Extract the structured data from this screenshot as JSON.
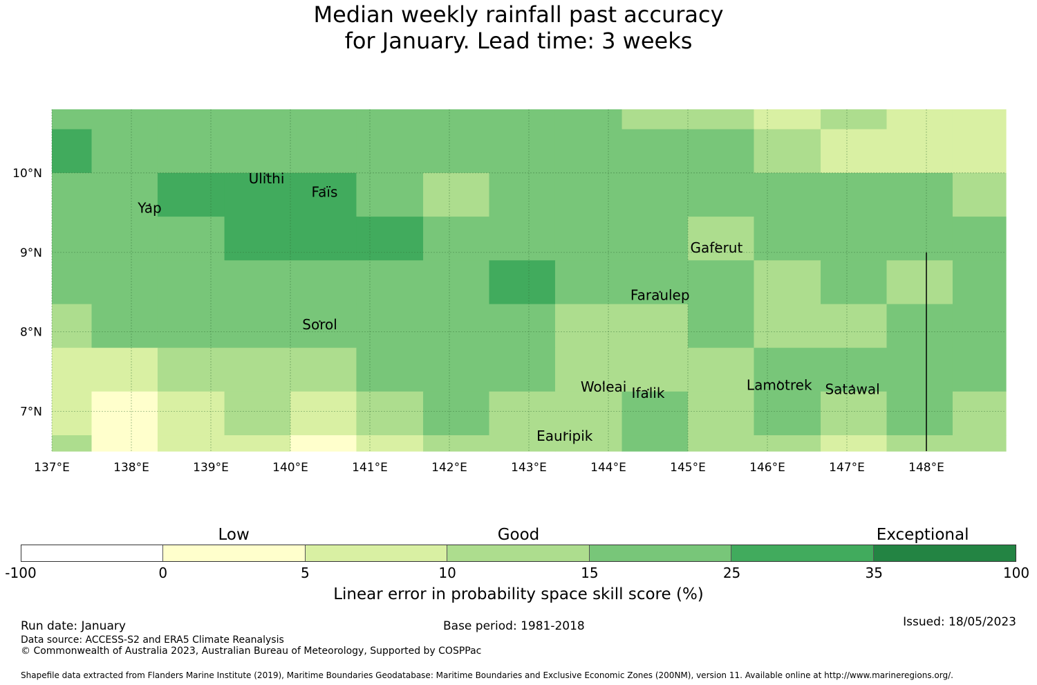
{
  "title": {
    "line1": "Median weekly rainfall past accuracy",
    "line2": "for January. Lead time: 3 weeks"
  },
  "chart_data": {
    "type": "heatmap",
    "title": "Median weekly rainfall past accuracy for January. Lead time: 3 weeks",
    "xlim": [
      137.0,
      149.0
    ],
    "ylim": [
      6.5,
      10.8
    ],
    "x_ticks": [
      {
        "value": 137,
        "label": "137°E"
      },
      {
        "value": 138,
        "label": "138°E"
      },
      {
        "value": 139,
        "label": "139°E"
      },
      {
        "value": 140,
        "label": "140°E"
      },
      {
        "value": 141,
        "label": "141°E"
      },
      {
        "value": 142,
        "label": "142°E"
      },
      {
        "value": 143,
        "label": "143°E"
      },
      {
        "value": 144,
        "label": "144°E"
      },
      {
        "value": 145,
        "label": "145°E"
      },
      {
        "value": 146,
        "label": "146°E"
      },
      {
        "value": 147,
        "label": "147°E"
      },
      {
        "value": 148,
        "label": "148°E"
      }
    ],
    "y_ticks": [
      {
        "value": 7,
        "label": "7°N"
      },
      {
        "value": 8,
        "label": "8°N"
      },
      {
        "value": 9,
        "label": "9°N"
      },
      {
        "value": 10,
        "label": "10°N"
      }
    ],
    "grid": true,
    "col_edges": [
      137.0,
      137.5,
      138.33,
      139.17,
      140.0,
      140.83,
      141.67,
      142.5,
      143.33,
      144.17,
      145.0,
      145.83,
      146.67,
      147.5,
      148.33,
      149.0
    ],
    "row_edges": [
      10.8,
      10.55,
      10.0,
      9.45,
      8.9,
      8.35,
      7.8,
      7.25,
      6.7,
      6.5
    ],
    "cell_class": [
      [
        4,
        4,
        4,
        4,
        4,
        4,
        4,
        4,
        4,
        3,
        3,
        2,
        3,
        2,
        2
      ],
      [
        5,
        4,
        4,
        4,
        4,
        4,
        4,
        4,
        4,
        4,
        4,
        3,
        2,
        2,
        2
      ],
      [
        4,
        4,
        5,
        5,
        5,
        4,
        3,
        4,
        4,
        4,
        4,
        4,
        4,
        4,
        3
      ],
      [
        4,
        4,
        4,
        5,
        5,
        5,
        4,
        4,
        4,
        4,
        3,
        4,
        4,
        4,
        4
      ],
      [
        4,
        4,
        4,
        4,
        4,
        4,
        4,
        5,
        4,
        4,
        4,
        3,
        4,
        3,
        4
      ],
      [
        3,
        4,
        4,
        4,
        4,
        4,
        4,
        4,
        3,
        3,
        4,
        3,
        3,
        4,
        4
      ],
      [
        2,
        2,
        3,
        3,
        3,
        4,
        4,
        4,
        3,
        3,
        3,
        4,
        4,
        4,
        4
      ],
      [
        2,
        1,
        2,
        3,
        2,
        3,
        4,
        3,
        3,
        4,
        3,
        4,
        3,
        4,
        3
      ],
      [
        3,
        1,
        2,
        2,
        1,
        2,
        3,
        3,
        3,
        4,
        3,
        3,
        2,
        3,
        3
      ]
    ],
    "class_colors": [
      "#ffffff",
      "#ffffcc",
      "#d9f0a3",
      "#addd8e",
      "#78c679",
      "#41ab5d",
      "#238443"
    ],
    "islands": [
      {
        "name": "Ulithi",
        "lon": 139.7,
        "lat": 9.87
      },
      {
        "name": "Faïs",
        "lon": 140.43,
        "lat": 9.7
      },
      {
        "name": "Yap",
        "lon": 138.23,
        "lat": 9.5
      },
      {
        "name": "Gaferut",
        "lon": 145.36,
        "lat": 9.0
      },
      {
        "name": "Faraulep",
        "lon": 144.65,
        "lat": 8.4
      },
      {
        "name": "Sorol",
        "lon": 140.37,
        "lat": 8.03
      },
      {
        "name": "Woleai",
        "lon": 143.94,
        "lat": 7.25
      },
      {
        "name": "Ifalik",
        "lon": 144.5,
        "lat": 7.17
      },
      {
        "name": "Lamotrek",
        "lon": 146.15,
        "lat": 7.27
      },
      {
        "name": "Satawal",
        "lon": 147.07,
        "lat": 7.22
      },
      {
        "name": "Eauripik",
        "lon": 143.45,
        "lat": 6.63
      }
    ],
    "boundary_line": {
      "lon": 148.0,
      "lat_from": 9.0,
      "lat_to": 6.5
    }
  },
  "legend": {
    "categories": [
      {
        "label": "Low",
        "at": 0.214
      },
      {
        "label": "Good",
        "at": 0.5
      },
      {
        "label": "Exceptional",
        "at": 0.906
      }
    ],
    "ticks": [
      "-100",
      "0",
      "5",
      "10",
      "15",
      "25",
      "35",
      "100"
    ],
    "colors": [
      "#ffffff",
      "#ffffcc",
      "#d9f0a3",
      "#addd8e",
      "#78c679",
      "#41ab5d",
      "#238443"
    ],
    "label": "Linear error in probability space skill score (%)"
  },
  "footer": {
    "run_date": "Run date: January",
    "base_period": "Base period: 1981-2018",
    "issued": "Issued: 18/05/2023",
    "data_source": "Data source: ACCESS-S2 and ERA5 Climate Reanalysis",
    "copyright": "© Commonwealth of Australia 2023, Australian Bureau of Meteorology, Supported by COSPPac",
    "shapefile": "Shapefile data extracted from Flanders Marine Institute (2019), Maritime Boundaries Geodatabase: Maritime Boundaries and Exclusive Economic Zones (200NM), version 11. Available online at http://www.marineregions.org/."
  }
}
